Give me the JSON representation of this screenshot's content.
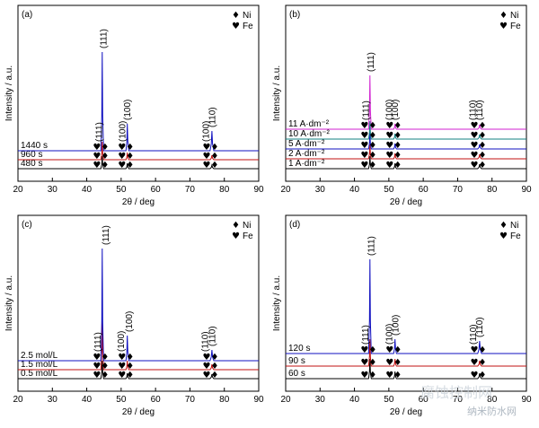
{
  "figure": {
    "legend_markers": {
      "ni": "♦",
      "fe": "♥"
    },
    "watermark": {
      "main": "腐蚀控制网",
      "sub": "纳米防水网"
    }
  },
  "chart_data": [
    {
      "panel": "(a)",
      "type": "line",
      "xlabel": "2θ / deg",
      "ylabel": "Intensity / a.u.",
      "xlim": [
        20,
        90
      ],
      "xticks": [
        20,
        30,
        40,
        50,
        60,
        70,
        80,
        90
      ],
      "legend": [
        {
          "symbol": "♦",
          "label": "Ni"
        },
        {
          "symbol": "♥",
          "label": "Fe"
        }
      ],
      "series": [
        {
          "name": "480 s",
          "color": "#000000",
          "peaks": [
            {
              "x": 44.5,
              "h": 14
            },
            {
              "x": 51.8,
              "h": 6
            },
            {
              "x": 76.4,
              "h": 4
            }
          ]
        },
        {
          "name": "960 s",
          "color": "#c01010",
          "peaks": [
            {
              "x": 44.5,
              "h": 20
            },
            {
              "x": 51.8,
              "h": 8
            },
            {
              "x": 76.4,
              "h": 5
            }
          ]
        },
        {
          "name": "1440 s",
          "color": "#1010c0",
          "peaks": [
            {
              "x": 44.5,
              "h": 110
            },
            {
              "x": 51.8,
              "h": 30
            },
            {
              "x": 76.4,
              "h": 22
            }
          ]
        }
      ],
      "hkl_labels": [
        {
          "text": "(111)",
          "x": 43.6,
          "series": 2,
          "above": 8
        },
        {
          "text": "(111)",
          "x": 44.9,
          "series": 2,
          "above": 112
        },
        {
          "text": "(100)",
          "x": 50.4,
          "series": 2,
          "above": 8
        },
        {
          "text": "(100)",
          "x": 51.9,
          "series": 2,
          "above": 32
        },
        {
          "text": "(100)",
          "x": 74.7,
          "series": 2,
          "above": 8
        },
        {
          "text": "(110)",
          "x": 76.5,
          "series": 2,
          "above": 24
        }
      ]
    },
    {
      "panel": "(b)",
      "type": "line",
      "xlabel": "2θ / deg",
      "ylabel": "Intensity / a.u.",
      "xlim": [
        20,
        90
      ],
      "xticks": [
        20,
        30,
        40,
        50,
        60,
        70,
        80,
        90
      ],
      "legend": [
        {
          "symbol": "♦",
          "label": "Ni"
        },
        {
          "symbol": "♥",
          "label": "Fe"
        }
      ],
      "series": [
        {
          "name": "1 A·dm⁻²",
          "color": "#000000",
          "peaks": [
            {
              "x": 44.5,
              "h": 14
            },
            {
              "x": 51.8,
              "h": 6
            },
            {
              "x": 76.4,
              "h": 5
            }
          ]
        },
        {
          "name": "2 A·dm⁻²",
          "color": "#c01010",
          "peaks": [
            {
              "x": 44.5,
              "h": 16
            },
            {
              "x": 51.8,
              "h": 6
            },
            {
              "x": 76.4,
              "h": 5
            }
          ]
        },
        {
          "name": "5 A·dm⁻²",
          "color": "#1010c0",
          "peaks": [
            {
              "x": 44.5,
              "h": 18
            },
            {
              "x": 51.8,
              "h": 6
            },
            {
              "x": 76.4,
              "h": 5
            }
          ]
        },
        {
          "name": "10 A·dm⁻²",
          "color": "#108080",
          "peaks": [
            {
              "x": 44.5,
              "h": 20
            },
            {
              "x": 51.8,
              "h": 6
            },
            {
              "x": 76.4,
              "h": 5
            }
          ]
        },
        {
          "name": "11 A·dm⁻²",
          "color": "#d020d0",
          "peaks": [
            {
              "x": 44.5,
              "h": 60
            },
            {
              "x": 51.8,
              "h": 6
            },
            {
              "x": 76.4,
              "h": 5
            }
          ]
        }
      ],
      "hkl_labels": [
        {
          "text": "(111)",
          "x": 43.4,
          "series": 4,
          "above": 8
        },
        {
          "text": "(111)",
          "x": 44.8,
          "series": 4,
          "above": 62
        },
        {
          "text": "(100)",
          "x": 50.2,
          "series": 4,
          "above": 8
        },
        {
          "text": "(100)",
          "x": 51.9,
          "series": 4,
          "above": 8
        },
        {
          "text": "(110)",
          "x": 74.5,
          "series": 4,
          "above": 8
        },
        {
          "text": "(110)",
          "x": 76.4,
          "series": 4,
          "above": 8
        }
      ]
    },
    {
      "panel": "(c)",
      "type": "line",
      "xlabel": "2θ / deg",
      "ylabel": "Intensity / a.u.",
      "xlim": [
        20,
        90
      ],
      "xticks": [
        20,
        30,
        40,
        50,
        60,
        70,
        80,
        90
      ],
      "legend": [
        {
          "symbol": "♦",
          "label": "Ni"
        },
        {
          "symbol": "♥",
          "label": "Fe"
        }
      ],
      "series": [
        {
          "name": "0.5 mol/L",
          "color": "#000000",
          "peaks": [
            {
              "x": 44.5,
              "h": 20
            },
            {
              "x": 51.8,
              "h": 6
            },
            {
              "x": 76.4,
              "h": 5
            }
          ]
        },
        {
          "name": "1.5 mol/L",
          "color": "#c01010",
          "peaks": [
            {
              "x": 44.5,
              "h": 60
            },
            {
              "x": 51.8,
              "h": 10
            },
            {
              "x": 76.4,
              "h": 6
            }
          ]
        },
        {
          "name": "2.5 mol/L",
          "color": "#1010c0",
          "peaks": [
            {
              "x": 44.5,
              "h": 125
            },
            {
              "x": 51.8,
              "h": 28
            },
            {
              "x": 76.4,
              "h": 12
            }
          ]
        }
      ],
      "hkl_labels": [
        {
          "text": "(111)",
          "x": 43.2,
          "series": 2,
          "above": 8
        },
        {
          "text": "(111)",
          "x": 45.6,
          "series": 2,
          "above": 127
        },
        {
          "text": "(100)",
          "x": 50.0,
          "series": 2,
          "above": 8
        },
        {
          "text": "(100)",
          "x": 52.4,
          "series": 2,
          "above": 30
        },
        {
          "text": "(110)",
          "x": 74.4,
          "series": 2,
          "above": 8
        },
        {
          "text": "(110)",
          "x": 76.6,
          "series": 2,
          "above": 14
        }
      ]
    },
    {
      "panel": "(d)",
      "type": "line",
      "xlabel": "2θ / deg",
      "ylabel": "Intensity / a.u.",
      "xlim": [
        20,
        90
      ],
      "xticks": [
        20,
        30,
        40,
        50,
        60,
        70,
        80,
        90
      ],
      "legend": [
        {
          "symbol": "♦",
          "label": "Ni"
        },
        {
          "symbol": "♥",
          "label": "Fe"
        }
      ],
      "series": [
        {
          "name": "60 s",
          "color": "#000000",
          "peaks": [
            {
              "x": 44.5,
              "h": 22
            },
            {
              "x": 51.8,
              "h": 8
            },
            {
              "x": 76.4,
              "h": 6
            }
          ]
        },
        {
          "name": "90 s",
          "color": "#c01010",
          "peaks": [
            {
              "x": 44.5,
              "h": 30
            },
            {
              "x": 51.8,
              "h": 8
            },
            {
              "x": 76.4,
              "h": 6
            }
          ]
        },
        {
          "name": "120 s",
          "color": "#1010c0",
          "peaks": [
            {
              "x": 44.5,
              "h": 105
            },
            {
              "x": 51.8,
              "h": 16
            },
            {
              "x": 76.4,
              "h": 14
            }
          ]
        }
      ],
      "hkl_labels": [
        {
          "text": "(111)",
          "x": 43.3,
          "series": 2,
          "above": 8
        },
        {
          "text": "(111)",
          "x": 44.9,
          "series": 2,
          "above": 107
        },
        {
          "text": "(100)",
          "x": 50.2,
          "series": 2,
          "above": 8
        },
        {
          "text": "(100)",
          "x": 52.0,
          "series": 2,
          "above": 18
        },
        {
          "text": "(110)",
          "x": 74.6,
          "series": 2,
          "above": 8
        },
        {
          "text": "(110)",
          "x": 76.4,
          "series": 2,
          "above": 16
        }
      ]
    }
  ]
}
